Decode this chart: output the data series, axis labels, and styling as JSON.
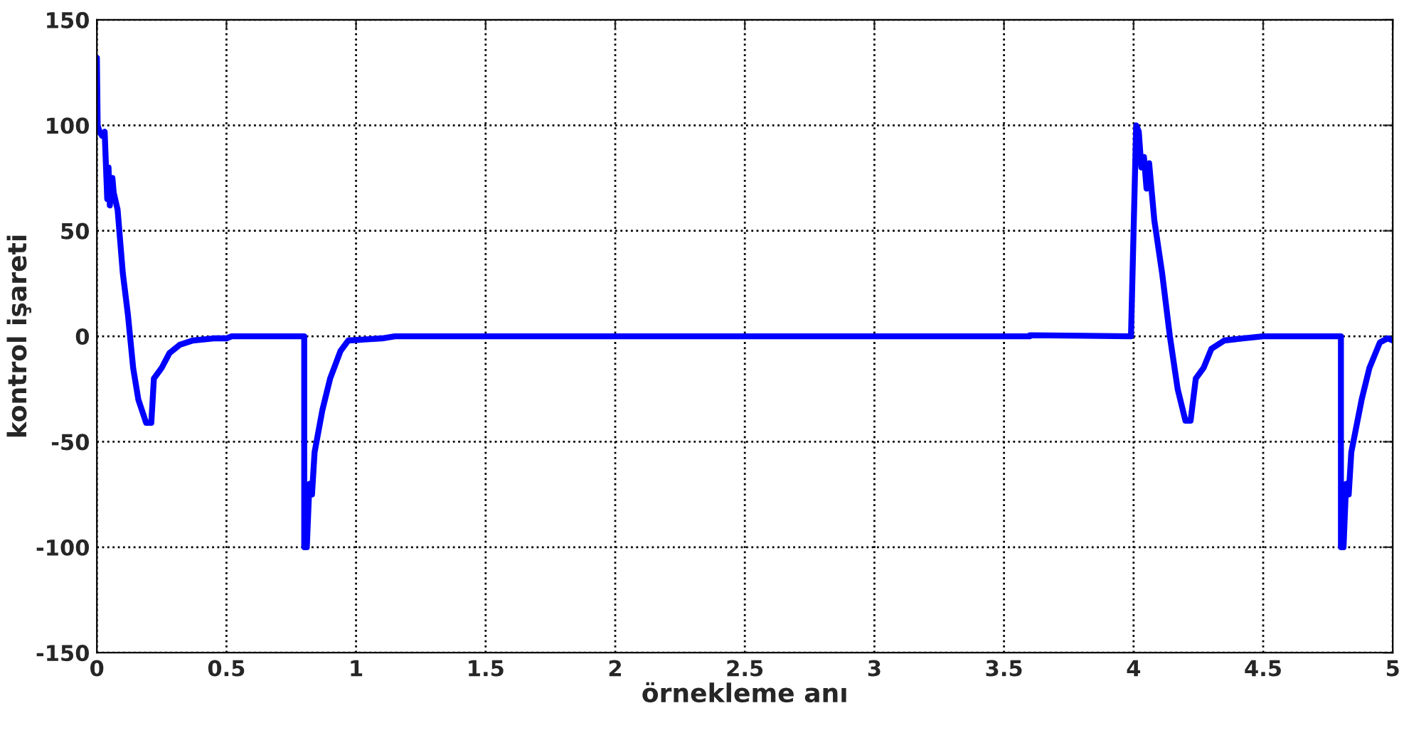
{
  "chart_data": {
    "type": "line",
    "xlabel": "örnekleme anı",
    "ylabel": "kontrol işareti",
    "xlim": [
      0,
      5
    ],
    "ylim": [
      -150,
      150
    ],
    "xticks": [
      0,
      0.5,
      1,
      1.5,
      2,
      2.5,
      3,
      3.5,
      4,
      4.5,
      5
    ],
    "yticks": [
      -150,
      -100,
      -50,
      0,
      50,
      100,
      150
    ],
    "grid": true,
    "legend": false,
    "marker": "none",
    "line_style": "solid",
    "series": [
      {
        "color": "#0000ff",
        "x": [
          0,
          0.003,
          0.01,
          0.02,
          0.03,
          0.04,
          0.045,
          0.05,
          0.06,
          0.065,
          0.08,
          0.1,
          0.12,
          0.14,
          0.16,
          0.19,
          0.21,
          0.22,
          0.25,
          0.28,
          0.32,
          0.37,
          0.45,
          0.5,
          0.52,
          0.8,
          0.8,
          0.81,
          0.82,
          0.83,
          0.84,
          0.87,
          0.9,
          0.94,
          0.97,
          1.1,
          1.15,
          3.6,
          3.6,
          3.99,
          4.0,
          4.01,
          4.02,
          4.03,
          4.04,
          4.05,
          4.06,
          4.08,
          4.11,
          4.14,
          4.17,
          4.2,
          4.22,
          4.24,
          4.27,
          4.3,
          4.35,
          4.42,
          4.5,
          4.8,
          4.8,
          4.81,
          4.82,
          4.83,
          4.84,
          4.88,
          4.91,
          4.95,
          4.98,
          5
        ],
        "values": [
          132,
          100,
          97,
          95,
          97,
          65,
          80,
          62,
          75,
          68,
          60,
          30,
          10,
          -15,
          -30,
          -41,
          -41,
          -20,
          -15,
          -8,
          -4,
          -2,
          -1,
          -1,
          0,
          0,
          -100,
          -100,
          -70,
          -75,
          -55,
          -35,
          -20,
          -7,
          -2,
          -1,
          0,
          0,
          0.5,
          0,
          50,
          100,
          97,
          80,
          85,
          70,
          82,
          55,
          30,
          0,
          -25,
          -40,
          -40,
          -20,
          -15,
          -6,
          -2,
          -1,
          0,
          0,
          -100,
          -100,
          -70,
          -75,
          -55,
          -30,
          -15,
          -3,
          -1,
          -2
        ]
      }
    ]
  }
}
